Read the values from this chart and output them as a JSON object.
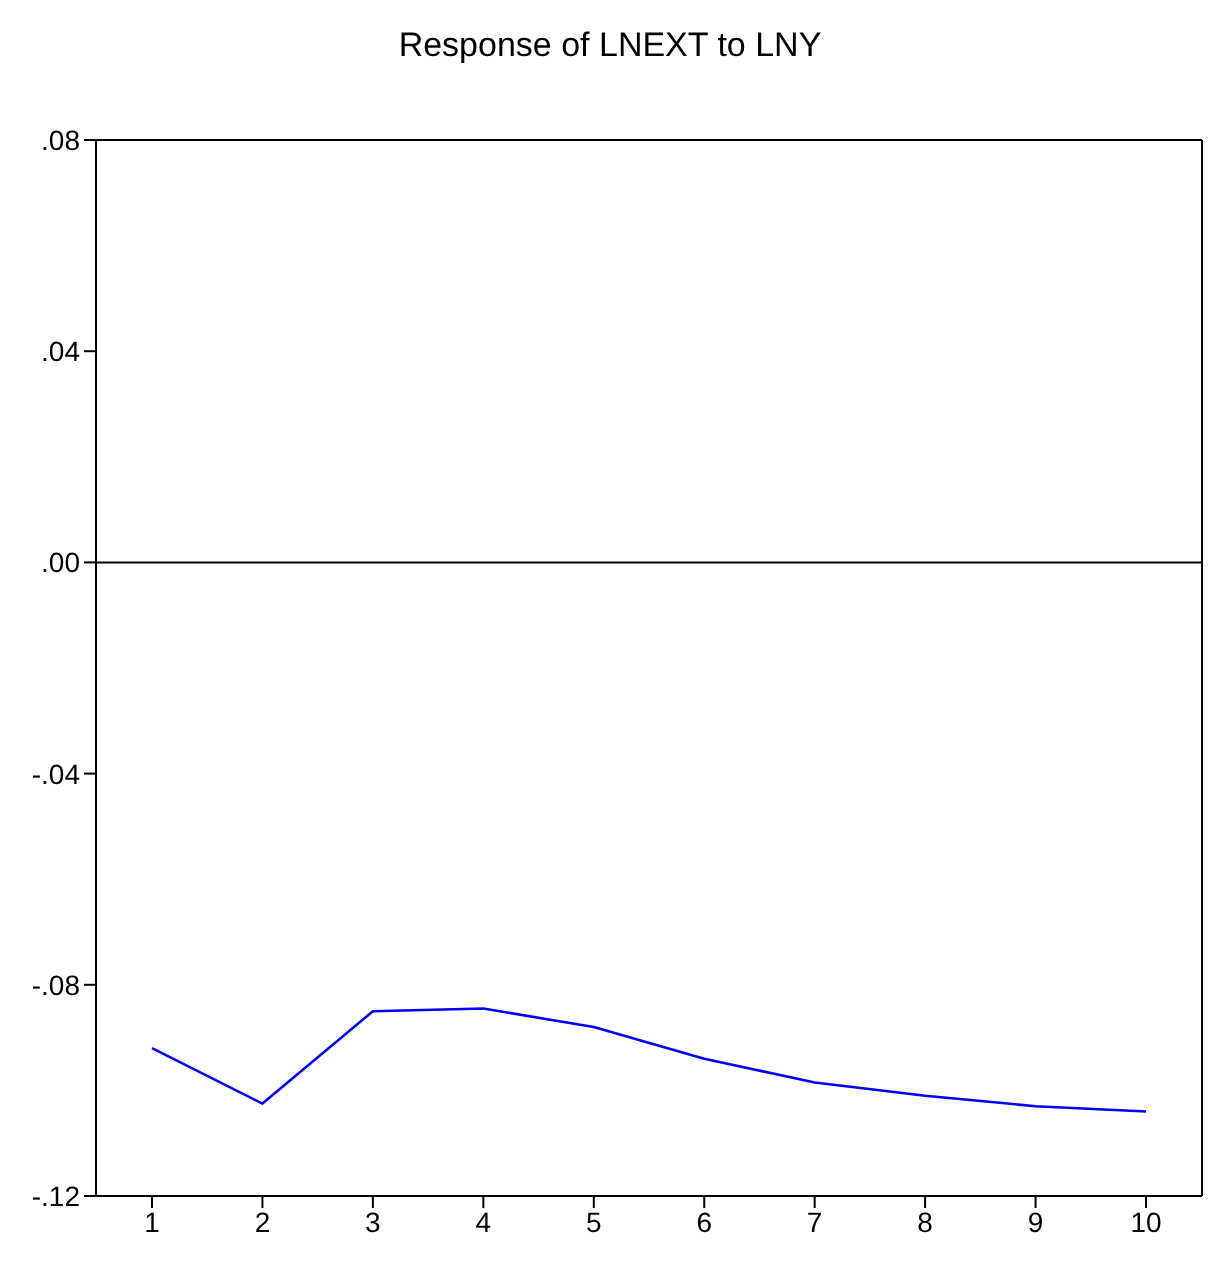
{
  "chart_data": {
    "type": "line",
    "title": "Response of LNEXT to LNY",
    "categories": [
      "1",
      "2",
      "3",
      "4",
      "5",
      "6",
      "7",
      "8",
      "9",
      "10"
    ],
    "series": [
      {
        "color": "#0000ff",
        "values": [
          -0.092,
          -0.1025,
          -0.085,
          -0.0845,
          -0.088,
          -0.094,
          -0.0985,
          -0.101,
          -0.103,
          -0.104
        ]
      }
    ],
    "ylim": [
      -0.12,
      0.08
    ],
    "yticks": [
      {
        "value": -0.12,
        "label": "-.12"
      },
      {
        "value": -0.08,
        "label": "-.08"
      },
      {
        "value": -0.04,
        "label": "-.04"
      },
      {
        "value": 0,
        "label": ".00"
      },
      {
        "value": 0.04,
        "label": ".04"
      },
      {
        "value": 0.08,
        "label": ".08"
      }
    ],
    "ref_lines": [
      {
        "axis": "y",
        "value": 0,
        "color": "#000000"
      }
    ],
    "grid": false,
    "legend": false,
    "marker": "none",
    "line_style": "solid"
  }
}
